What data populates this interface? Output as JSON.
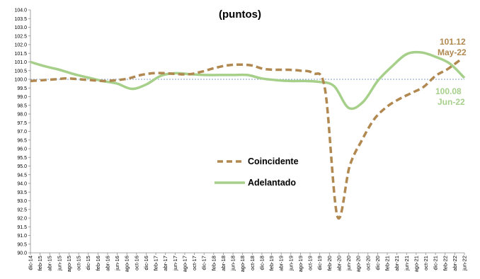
{
  "chart_data": {
    "type": "line",
    "title": "(puntos)",
    "xlabel": "",
    "ylabel": "",
    "ylim": [
      90.0,
      104.0
    ],
    "yticks": [
      "90.0",
      "90.5",
      "91.0",
      "91.5",
      "92.0",
      "92.5",
      "93.0",
      "93.5",
      "94.0",
      "94.5",
      "95.0",
      "95.5",
      "96.0",
      "96.5",
      "97.0",
      "97.5",
      "98.0",
      "98.5",
      "99.0",
      "99.5",
      "100.0",
      "100.5",
      "101.0",
      "101.5",
      "102.0",
      "102.5",
      "103.0",
      "103.5",
      "104.0"
    ],
    "x_tick_labels": [
      "dic-14",
      "feb-15",
      "abr-15",
      "jun-15",
      "ago-15",
      "oct-15",
      "dic-15",
      "feb-16",
      "abr-16",
      "jun-16",
      "ago-16",
      "oct-16",
      "dic-16",
      "feb-17",
      "abr-17",
      "jun-17",
      "ago-17",
      "oct-17",
      "dic-17",
      "feb-18",
      "abr-18",
      "jun-18",
      "ago-18",
      "oct-18",
      "dic-18",
      "feb-19",
      "abr-19",
      "jun-19",
      "ago-19",
      "oct-19",
      "dic-19",
      "feb-20",
      "abr-20",
      "jun-20",
      "ago-20",
      "oct-20",
      "dic-20",
      "feb-21",
      "abr-21",
      "jun-21",
      "ago-21",
      "oct-21",
      "dic-21",
      "feb-22",
      "abr-22",
      "jun-22"
    ],
    "reference_line": 100.0,
    "grid": false,
    "legend_position": "center",
    "series": [
      {
        "name": "Coincidente",
        "color": "#b08850",
        "style": "dashed",
        "values": [
          99.9,
          99.95,
          100.0,
          100.05,
          100.0,
          99.95,
          99.9,
          99.95,
          100.05,
          100.25,
          100.35,
          100.35,
          100.3,
          100.3,
          100.45,
          100.65,
          100.8,
          100.85,
          100.8,
          100.6,
          100.55,
          100.55,
          100.5,
          100.35,
          99.4,
          92.1,
          95.0,
          96.5,
          97.7,
          98.4,
          98.85,
          99.2,
          99.55,
          100.2,
          100.6,
          101.12
        ]
      },
      {
        "name": "Adelantado",
        "color": "#a6d08a",
        "style": "solid",
        "values": [
          101.0,
          100.75,
          100.55,
          100.3,
          100.1,
          99.9,
          99.75,
          99.45,
          99.7,
          100.2,
          100.35,
          100.3,
          100.25,
          100.25,
          100.25,
          100.25,
          100.05,
          99.95,
          99.9,
          99.9,
          99.85,
          99.6,
          98.35,
          98.7,
          99.9,
          100.75,
          101.45,
          101.55,
          101.3,
          100.9,
          100.08
        ]
      }
    ],
    "annotations": [
      {
        "series": "Coincidente",
        "value": "101.12",
        "label": "May-22",
        "color": "#b08850"
      },
      {
        "series": "Adelantado",
        "value": "100.08",
        "label": "Jun-22",
        "color": "#a6d08a"
      }
    ]
  }
}
